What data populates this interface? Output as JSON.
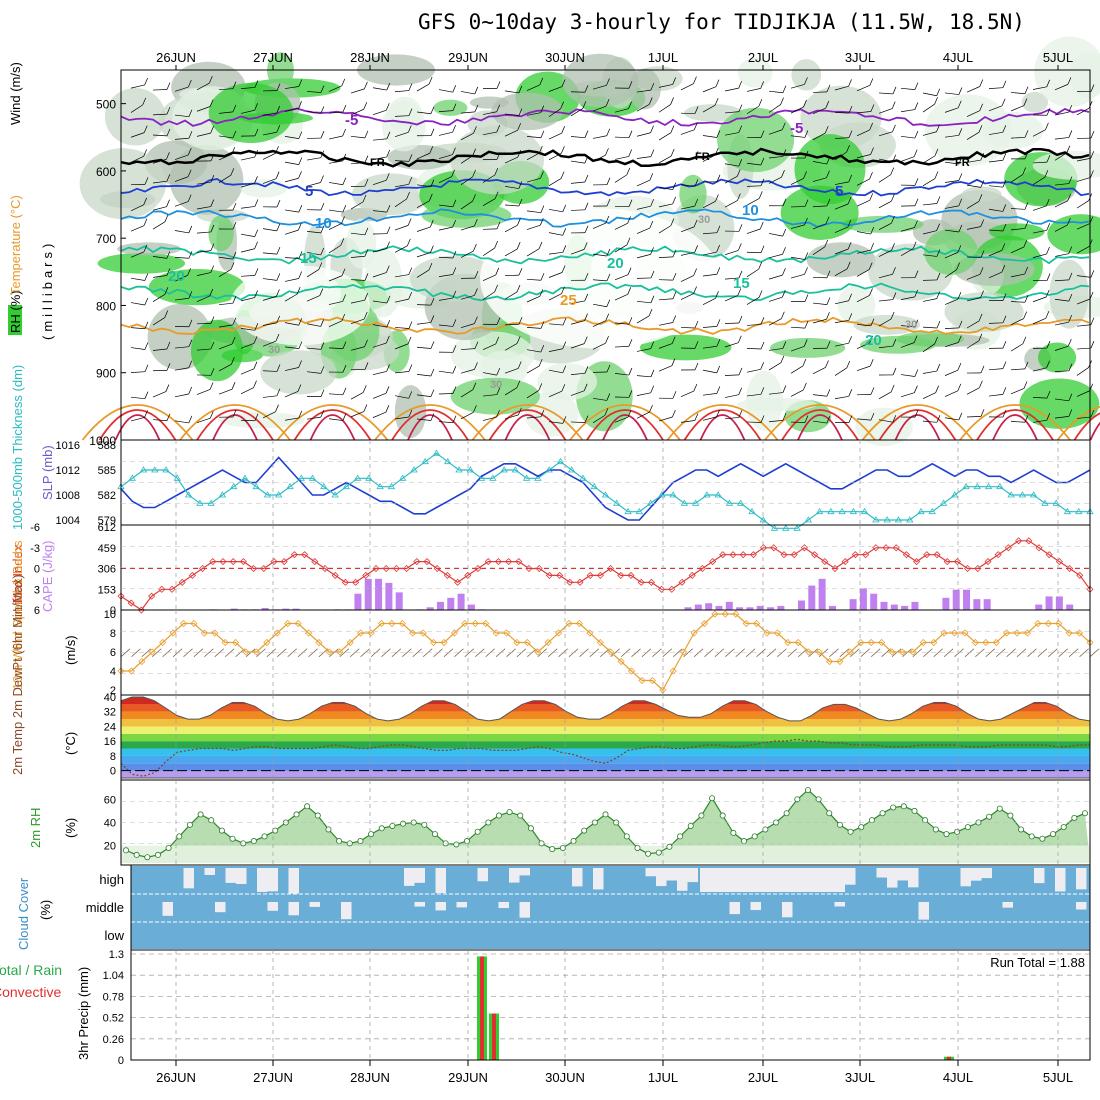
{
  "title": "GFS 0~10day 3-hourly for TIDJIKJA (11.5W, 18.5N)",
  "colors": {
    "rh_green": "#33cc33",
    "wind_barb": "#000000",
    "temp_freezing": "#000000",
    "purple": "#8a22c0",
    "blue": "#1f3fd0",
    "lightblue": "#1f8fe0",
    "teal": "#1abf9c",
    "orange": "#e89a2a",
    "red": "#e03030",
    "crimson": "#c8204a",
    "slp_line": "#1f3fd0",
    "thickness_line": "#2bbcc4",
    "cape_bar": "#c080f0",
    "lifted_index": "#e03a3a",
    "wind_speed": "#e8a030",
    "cloud": "#6aaed8",
    "precip_rain": "#33cc33",
    "precip_conv": "#e03030"
  },
  "chart_data": [
    {
      "panel": "upper-air",
      "type": "heatmap",
      "ylabel_left": [
        "RH (%)",
        "Temperature (°C)",
        "Wind (m/s)"
      ],
      "ylabel_right": "(millibars)",
      "y_ticks": [
        500,
        600,
        700,
        800,
        900,
        1000
      ],
      "ylim": [
        1000,
        450
      ],
      "x_ticks": [
        "26JUN",
        "27JUN",
        "28JUN",
        "29JUN",
        "30JUN",
        "1JUL",
        "2JUL",
        "3JUL",
        "4JUL",
        "5JUL"
      ],
      "contour_labels": [
        "-5",
        "FR",
        "5",
        "10",
        "15",
        "20",
        "25",
        "30"
      ],
      "temperature_contours": [
        {
          "label": "-5",
          "level_mb": 520
        },
        {
          "label": "FR",
          "level_mb": 580
        },
        {
          "label": "5",
          "level_mb": 625
        },
        {
          "label": "10",
          "level_mb": 670
        },
        {
          "label": "15",
          "level_mb": 725
        },
        {
          "label": "20",
          "level_mb": 780
        },
        {
          "label": "25",
          "level_mb": 830
        }
      ]
    },
    {
      "panel": "slp-thickness",
      "type": "line",
      "ylabel_left": "1000-500mb Thickness (dm)",
      "ylabel_right": "SLP (mb)",
      "left_ticks": [
        579,
        582,
        585,
        588
      ],
      "right_ticks": [
        1004,
        1008,
        1012,
        1016
      ],
      "series": [
        {
          "name": "SLP (mb)",
          "values": [
            1009,
            1007,
            1006,
            1006,
            1007,
            1008,
            1009,
            1010,
            1011,
            1012,
            1011,
            1010,
            1010,
            1012,
            1014,
            1012,
            1010,
            1008,
            1008,
            1009,
            1010,
            1009,
            1008,
            1007,
            1007,
            1006,
            1005,
            1005,
            1006,
            1007,
            1008,
            1009,
            1011,
            1012,
            1013,
            1013,
            1012,
            1011,
            1012,
            1012,
            1011,
            1010,
            1008,
            1006,
            1005,
            1004,
            1004,
            1006,
            1008,
            1010,
            1011,
            1012,
            1012,
            1011,
            1012,
            1013,
            1012,
            1011,
            1012,
            1013,
            1012,
            1011,
            1010,
            1009,
            1009,
            1010,
            1011,
            1012,
            1012,
            1011,
            1011,
            1012,
            1013,
            1012,
            1011,
            1012,
            1012,
            1011,
            1011,
            1010,
            1011,
            1012,
            1011,
            1010,
            1010,
            1011,
            1012
          ]
        },
        {
          "name": "1000-500mb Thickness (dm)",
          "values": [
            583,
            584,
            585,
            585,
            585,
            584,
            582,
            581,
            581,
            582,
            583,
            584,
            583,
            582,
            582,
            583,
            584,
            584,
            583,
            582,
            583,
            584,
            584,
            583,
            583,
            584,
            585,
            586,
            587,
            586,
            585,
            585,
            584,
            584,
            585,
            585,
            584,
            584,
            585,
            586,
            585,
            584,
            583,
            582,
            581,
            580,
            580,
            581,
            582,
            582,
            581,
            581,
            582,
            582,
            581,
            581,
            580,
            579,
            578,
            578,
            578,
            579,
            580,
            580,
            580,
            580,
            580,
            579,
            579,
            579,
            579,
            580,
            580,
            581,
            582,
            583,
            583,
            583,
            583,
            582,
            582,
            582,
            581,
            581,
            580,
            580,
            580
          ]
        }
      ]
    },
    {
      "panel": "lifted-index-cape",
      "type": "bar",
      "ylabel_left": "Lifted Index",
      "ylabel_right": "CAPE (J/kg)",
      "left_ticks": [
        -6,
        -3,
        0,
        3,
        6
      ],
      "right_ticks": [
        0,
        153,
        306,
        459,
        612
      ],
      "series": [
        {
          "name": "CAPE (J/kg)",
          "values": [
            0,
            0,
            0,
            0,
            0,
            0,
            0,
            0,
            5,
            0,
            10,
            5,
            5,
            15,
            5,
            10,
            10,
            0,
            0,
            0,
            5,
            5,
            120,
            230,
            230,
            200,
            130,
            0,
            5,
            20,
            60,
            90,
            120,
            40,
            5,
            0,
            0,
            0,
            0,
            0,
            0,
            0,
            0,
            0,
            0,
            0,
            0,
            0,
            0,
            0,
            0,
            0,
            0,
            0,
            20,
            40,
            50,
            30,
            60,
            20,
            20,
            30,
            20,
            30,
            0,
            70,
            180,
            230,
            30,
            0,
            80,
            160,
            120,
            60,
            40,
            30,
            60,
            0,
            0,
            90,
            150,
            150,
            80,
            80,
            0,
            0,
            0,
            0,
            40,
            100,
            100,
            40,
            0
          ]
        },
        {
          "name": "Lifted Index",
          "values": [
            4,
            5,
            6,
            4,
            3,
            3,
            2,
            1,
            0,
            -1,
            -1,
            -1,
            -1,
            0,
            0,
            -1,
            -1,
            -2,
            -2,
            -1,
            0,
            1,
            2,
            2,
            1,
            0,
            0,
            0,
            0,
            -1,
            -1,
            0,
            1,
            2,
            1,
            0,
            -1,
            -1,
            -1,
            -1,
            0,
            0,
            1,
            1,
            2,
            2,
            1,
            1,
            0,
            1,
            1,
            2,
            2,
            3,
            3,
            2,
            1,
            0,
            -1,
            -2,
            -2,
            -2,
            -2,
            -3,
            -3,
            -2,
            -2,
            -3,
            -2,
            -1,
            0,
            -1,
            -2,
            -2,
            -3,
            -3,
            -3,
            -2,
            -1,
            -2,
            -2,
            -1,
            -1,
            0,
            0,
            -1,
            -2,
            -3,
            -4,
            -4,
            -3,
            -2,
            -1,
            0,
            1,
            3
          ]
        }
      ]
    },
    {
      "panel": "wind",
      "type": "line",
      "ylabel_left": "10m Wind Speed & Barbs",
      "ylabel_right": "(m/s)",
      "y_ticks": [
        2,
        4,
        6,
        8,
        10
      ],
      "series": [
        {
          "name": "10m Wind Speed",
          "values": [
            4,
            4,
            5,
            6,
            7,
            8,
            9,
            9,
            8,
            8,
            7,
            7,
            6,
            6,
            7,
            8,
            9,
            9,
            8,
            7,
            6,
            6,
            7,
            8,
            8,
            9,
            9,
            9,
            8,
            8,
            7,
            7,
            8,
            9,
            9,
            9,
            8,
            8,
            7,
            7,
            6,
            7,
            8,
            9,
            9,
            8,
            7,
            6,
            5,
            4,
            3,
            3,
            2,
            4,
            6,
            8,
            9,
            10,
            10,
            10,
            9,
            9,
            8,
            8,
            7,
            7,
            6,
            6,
            5,
            5,
            6,
            7,
            7,
            7,
            6,
            6,
            6,
            7,
            7,
            8,
            8,
            8,
            7,
            7,
            7,
            8,
            8,
            8,
            9,
            9,
            9,
            8,
            8,
            7
          ]
        }
      ]
    },
    {
      "panel": "temperature",
      "type": "area",
      "ylabel_left": "2m Temp 2m DewPt (6hr Min/Max)",
      "ylabel_right": "(°C)",
      "y_ticks": [
        0,
        8,
        16,
        24,
        32,
        40
      ],
      "series": [
        {
          "name": "2m Temp",
          "values": [
            38,
            40,
            40,
            38,
            34,
            30,
            28,
            28,
            30,
            34,
            37,
            37,
            35,
            31,
            28,
            27,
            28,
            31,
            35,
            37,
            37,
            35,
            31,
            28,
            27,
            28,
            31,
            35,
            38,
            38,
            36,
            32,
            28,
            27,
            28,
            32,
            36,
            38,
            38,
            36,
            32,
            29,
            28,
            28,
            31,
            35,
            38,
            38,
            36,
            33,
            30,
            29,
            29,
            31,
            35,
            38,
            38,
            36,
            32,
            29,
            27,
            27,
            30,
            34,
            36,
            36,
            34,
            31,
            28,
            27,
            28,
            31,
            35,
            37,
            37,
            35,
            31,
            28,
            27,
            28,
            31,
            34,
            37,
            37,
            35,
            31,
            28,
            27
          ]
        },
        {
          "name": "2m DewPt",
          "values": [
            4,
            -2,
            -3,
            -1,
            5,
            10,
            11,
            12,
            12,
            12,
            11,
            12,
            13,
            13,
            12,
            12,
            12,
            12,
            13,
            14,
            13,
            12,
            12,
            13,
            14,
            14,
            13,
            12,
            11,
            11,
            12,
            12,
            12,
            11,
            11,
            11,
            12,
            13,
            12,
            10,
            9,
            7,
            5,
            4,
            7,
            11,
            12,
            13,
            13,
            12,
            12,
            13,
            14,
            14,
            13,
            13,
            14,
            15,
            16,
            16,
            17,
            16,
            16,
            15,
            15,
            14,
            14,
            14,
            13,
            13,
            13,
            14,
            14,
            14,
            14,
            13,
            13,
            13,
            14,
            14,
            14,
            14,
            14,
            13,
            13,
            14,
            14
          ]
        }
      ]
    },
    {
      "panel": "relative-humidity",
      "type": "area",
      "ylabel_left": "2m RH",
      "ylabel_right": "(%)",
      "y_ticks": [
        20,
        40,
        60
      ],
      "series": [
        {
          "name": "2m RH",
          "values": [
            16,
            12,
            10,
            12,
            18,
            28,
            38,
            47,
            42,
            33,
            26,
            22,
            24,
            28,
            33,
            40,
            47,
            54,
            46,
            34,
            24,
            22,
            24,
            30,
            35,
            37,
            39,
            40,
            38,
            30,
            22,
            21,
            24,
            32,
            40,
            46,
            49,
            46,
            35,
            22,
            17,
            18,
            24,
            33,
            40,
            47,
            40,
            28,
            18,
            13,
            14,
            19,
            28,
            37,
            46,
            61,
            46,
            31,
            24,
            28,
            34,
            40,
            48,
            60,
            68,
            60,
            48,
            38,
            32,
            36,
            42,
            48,
            53,
            54,
            50,
            42,
            34,
            30,
            32,
            36,
            40,
            45,
            52,
            46,
            34,
            28,
            26,
            30,
            36,
            44,
            48
          ]
        }
      ]
    },
    {
      "panel": "cloud-cover",
      "type": "heatmap",
      "ylabel_left": "Cloud Cover",
      "ylabel_right": "(%)",
      "levels": [
        "high",
        "middle",
        "low"
      ]
    },
    {
      "panel": "precipitation",
      "type": "bar",
      "ylabel_left": "Total / Rain Convective",
      "ylabel_right": "3hr Precip (mm)",
      "y_ticks": [
        0,
        0.26,
        0.52,
        0.78,
        1.04,
        1.3
      ],
      "annotation": "Run Total = 1.88",
      "bars": [
        {
          "x": "29JUN 03Z",
          "total": 1.27,
          "rain": 1.27,
          "convective": 1.27
        },
        {
          "x": "29JUN 06Z",
          "total": 0.57,
          "rain": 0.57,
          "convective": 0.57
        },
        {
          "x": "4JUL 21Z",
          "total": 0.04,
          "rain": 0.04,
          "convective": 0.04
        }
      ]
    }
  ]
}
